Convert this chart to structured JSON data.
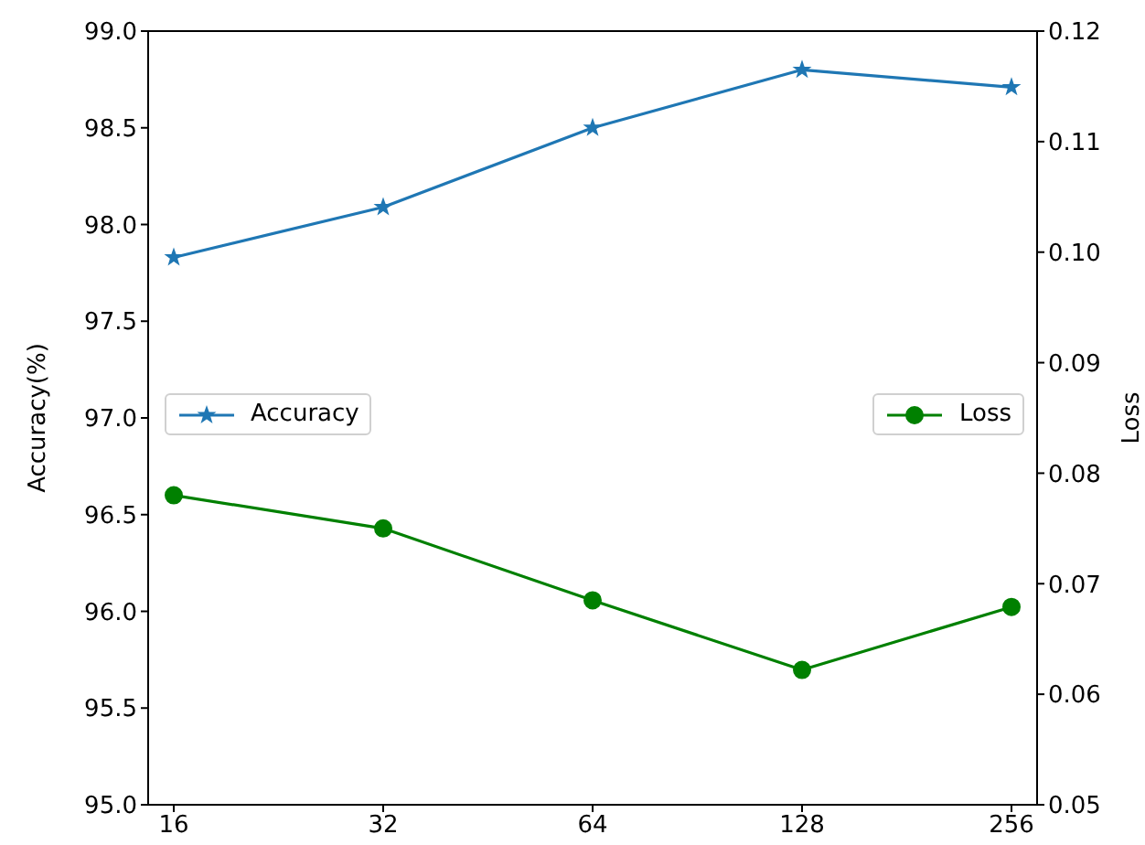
{
  "chart_data": {
    "type": "line",
    "categories": [
      "16",
      "32",
      "64",
      "128",
      "256"
    ],
    "ylabel": "Accuracy(%)",
    "y2label": "Loss",
    "ylim": [
      95.0,
      99.0
    ],
    "yticks": [
      {
        "value": 95,
        "label": "95.0"
      },
      {
        "value": 95.5,
        "label": "95.5"
      },
      {
        "value": 96,
        "label": "96.0"
      },
      {
        "value": 96.5,
        "label": "96.5"
      },
      {
        "value": 97,
        "label": "97.0"
      },
      {
        "value": 97.5,
        "label": "97.5"
      },
      {
        "value": 98,
        "label": "98.0"
      },
      {
        "value": 98.5,
        "label": "98.5"
      },
      {
        "value": 99,
        "label": "99.0"
      }
    ],
    "y2lim": [
      0.05,
      0.12
    ],
    "y2ticks": [
      {
        "value": 0.05,
        "label": "0.05"
      },
      {
        "value": 0.06,
        "label": "0.06"
      },
      {
        "value": 0.07,
        "label": "0.07"
      },
      {
        "value": 0.08,
        "label": "0.08"
      },
      {
        "value": 0.09,
        "label": "0.09"
      },
      {
        "value": 0.1,
        "label": "0.10"
      },
      {
        "value": 0.11,
        "label": "0.11"
      },
      {
        "value": 0.12,
        "label": "0.12"
      }
    ],
    "legend": "left",
    "grid": false,
    "series": [
      {
        "name": "Accuracy",
        "color": "#1f77b4",
        "marker": "star",
        "values": [
          97.83,
          98.09,
          98.5,
          98.8,
          98.71
        ]
      },
      {
        "name": "Loss",
        "color": "#008000",
        "marker": "circle",
        "axis": "y2",
        "values": [
          0.078,
          0.075,
          0.0685,
          0.0622,
          0.0679
        ]
      }
    ]
  }
}
